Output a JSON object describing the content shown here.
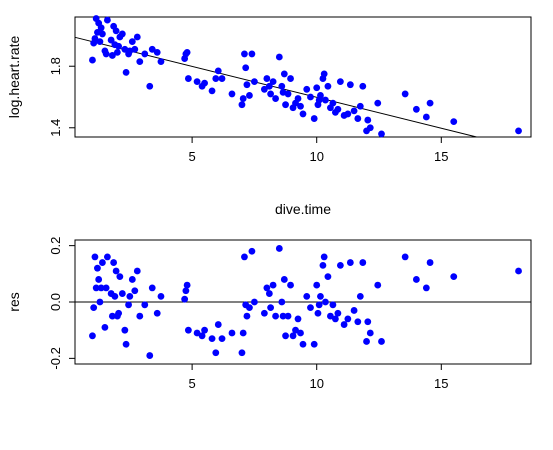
{
  "chart_data": [
    {
      "type": "scatter",
      "xlabel": "dive.time",
      "ylabel": "log.heart.rate",
      "xlim": [
        0.3,
        18.6
      ],
      "ylim": [
        1.34,
        2.12
      ],
      "xticks": [
        5,
        10,
        15
      ],
      "yticks": [
        1.4,
        1.8
      ],
      "ytick_labels": [
        "1.4",
        "1.8"
      ],
      "point_color": "#0000ff",
      "line_color": "#000000",
      "fit_line": {
        "intercept": 2.0,
        "slope": -0.0402
      },
      "series": [
        {
          "x": [
            1.0,
            1.05,
            1.1,
            1.15,
            1.2,
            1.25,
            1.3,
            1.35,
            1.4,
            1.5,
            1.55,
            1.6,
            1.75,
            1.8,
            1.85,
            1.9,
            1.95,
            2.0,
            2.05,
            2.1,
            2.2,
            2.3,
            2.35,
            2.45,
            2.5,
            2.6,
            2.7,
            2.8,
            2.9,
            3.1,
            3.3,
            3.4,
            3.6,
            3.75,
            4.7,
            4.75,
            4.8,
            4.85,
            5.2,
            5.4,
            5.5,
            5.8,
            5.95,
            6.05,
            6.2,
            6.6,
            7.0,
            7.05,
            7.1,
            7.15,
            7.2,
            7.3,
            7.4,
            7.5,
            7.9,
            8.0,
            8.1,
            8.15,
            8.25,
            8.35,
            8.5,
            8.6,
            8.65,
            8.7,
            8.75,
            8.85,
            8.95,
            9.05,
            9.15,
            9.25,
            9.35,
            9.45,
            9.6,
            9.75,
            9.9,
            10.0,
            10.05,
            10.1,
            10.15,
            10.25,
            10.3,
            10.35,
            10.45,
            10.55,
            10.65,
            10.75,
            10.85,
            10.95,
            11.1,
            11.25,
            11.35,
            11.5,
            11.65,
            11.75,
            11.85,
            12.0,
            12.05,
            12.15,
            12.45,
            12.6,
            13.55,
            14.0,
            14.4,
            14.55,
            15.5,
            18.1
          ],
          "y": [
            1.84,
            1.95,
            1.98,
            2.11,
            2.02,
            2.08,
            1.96,
            2.05,
            2.01,
            1.9,
            1.88,
            2.1,
            1.97,
            1.87,
            2.06,
            1.94,
            2.03,
            1.89,
            1.93,
            1.99,
            2.01,
            1.91,
            1.76,
            1.88,
            1.9,
            1.96,
            1.91,
            1.99,
            1.83,
            1.88,
            1.67,
            1.91,
            1.89,
            1.83,
            1.85,
            1.88,
            1.89,
            1.72,
            1.7,
            1.67,
            1.69,
            1.64,
            1.72,
            1.77,
            1.72,
            1.62,
            1.55,
            1.59,
            1.88,
            1.79,
            1.68,
            1.61,
            1.88,
            1.7,
            1.65,
            1.72,
            1.67,
            1.62,
            1.7,
            1.59,
            1.86,
            1.67,
            1.63,
            1.75,
            1.55,
            1.62,
            1.72,
            1.53,
            1.56,
            1.59,
            1.54,
            1.49,
            1.65,
            1.6,
            1.46,
            1.66,
            1.55,
            1.58,
            1.61,
            1.72,
            1.75,
            1.58,
            1.67,
            1.53,
            1.56,
            1.5,
            1.52,
            1.7,
            1.48,
            1.49,
            1.68,
            1.51,
            1.46,
            1.54,
            1.67,
            1.38,
            1.45,
            1.4,
            1.56,
            1.36,
            1.62,
            1.52,
            1.47,
            1.56,
            1.44,
            1.38
          ]
        }
      ]
    },
    {
      "type": "scatter",
      "xlabel": "",
      "ylabel": "res",
      "xlim": [
        0.3,
        18.6
      ],
      "ylim": [
        -0.22,
        0.22
      ],
      "xticks": [
        5,
        10,
        15
      ],
      "yticks": [
        -0.2,
        0.0,
        0.2
      ],
      "ytick_labels": [
        "-0.2",
        "0.0",
        "0.2"
      ],
      "point_color": "#0000ff",
      "line_color": "#000000",
      "hline": 0,
      "series": [
        {
          "x": [
            1.0,
            1.05,
            1.1,
            1.15,
            1.2,
            1.25,
            1.3,
            1.35,
            1.4,
            1.5,
            1.55,
            1.6,
            1.75,
            1.8,
            1.85,
            1.9,
            1.95,
            2.0,
            2.05,
            2.1,
            2.2,
            2.3,
            2.35,
            2.45,
            2.5,
            2.6,
            2.7,
            2.8,
            2.9,
            3.1,
            3.3,
            3.4,
            3.6,
            3.75,
            4.7,
            4.75,
            4.8,
            4.85,
            5.2,
            5.4,
            5.5,
            5.8,
            5.95,
            6.05,
            6.2,
            6.6,
            7.0,
            7.05,
            7.1,
            7.15,
            7.2,
            7.3,
            7.4,
            7.5,
            7.9,
            8.0,
            8.1,
            8.15,
            8.25,
            8.35,
            8.5,
            8.6,
            8.65,
            8.7,
            8.75,
            8.85,
            8.95,
            9.05,
            9.15,
            9.25,
            9.35,
            9.45,
            9.6,
            9.75,
            9.9,
            10.0,
            10.05,
            10.1,
            10.15,
            10.25,
            10.3,
            10.35,
            10.45,
            10.55,
            10.65,
            10.75,
            10.85,
            10.95,
            11.1,
            11.25,
            11.35,
            11.5,
            11.65,
            11.75,
            11.85,
            12.0,
            12.05,
            12.15,
            12.45,
            12.6,
            13.55,
            14.0,
            14.4,
            14.55,
            15.5,
            18.1
          ],
          "y": [
            -0.12,
            -0.02,
            0.16,
            0.05,
            0.12,
            0.08,
            0.0,
            0.05,
            0.14,
            -0.09,
            0.05,
            0.16,
            0.03,
            -0.05,
            0.14,
            0.02,
            0.11,
            -0.05,
            -0.04,
            0.09,
            0.03,
            -0.1,
            -0.15,
            -0.01,
            0.02,
            0.08,
            0.04,
            0.11,
            -0.05,
            -0.01,
            -0.19,
            0.05,
            -0.04,
            0.02,
            0.01,
            0.04,
            0.06,
            -0.1,
            -0.11,
            -0.12,
            -0.1,
            -0.13,
            -0.18,
            -0.08,
            -0.13,
            -0.11,
            -0.18,
            -0.11,
            0.16,
            -0.01,
            -0.05,
            -0.02,
            0.18,
            0.0,
            -0.04,
            0.05,
            0.03,
            -0.02,
            0.06,
            -0.05,
            0.19,
            0.0,
            -0.05,
            0.08,
            -0.12,
            -0.05,
            0.06,
            -0.12,
            -0.1,
            -0.06,
            -0.11,
            -0.15,
            0.02,
            -0.02,
            -0.15,
            0.06,
            -0.04,
            -0.01,
            0.02,
            0.13,
            0.16,
            0.0,
            0.09,
            -0.05,
            -0.01,
            -0.06,
            -0.04,
            0.13,
            -0.08,
            -0.06,
            0.14,
            -0.03,
            -0.07,
            0.02,
            0.14,
            -0.14,
            -0.07,
            -0.11,
            0.06,
            -0.14,
            0.16,
            0.08,
            0.05,
            0.14,
            0.09,
            0.11
          ]
        }
      ]
    }
  ]
}
